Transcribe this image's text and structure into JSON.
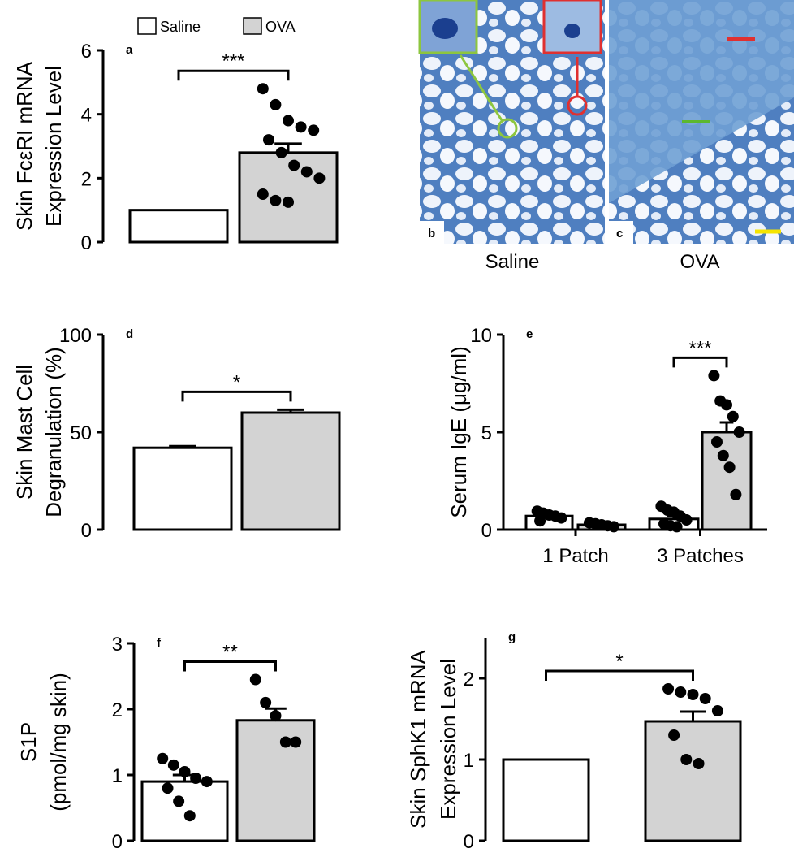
{
  "chart_data": [
    {
      "type": "bar",
      "letter": "a",
      "ylabel": [
        "Skin FcεRI mRNA",
        "Expression Level"
      ],
      "ylim": [
        0,
        6
      ],
      "yticks": [
        0,
        2,
        4,
        6
      ],
      "categories": [
        null
      ],
      "legend": true,
      "significance": "***",
      "series": [
        {
          "name": "Saline",
          "color": "#ffffff",
          "values": [
            1.0
          ],
          "errors": [
            null
          ]
        },
        {
          "name": "OVA",
          "color": "#d3d3d3",
          "values": [
            2.8
          ],
          "errors": [
            0.28
          ],
          "points": [
            [
              4.8,
              4.3,
              3.8,
              3.6,
              3.5,
              3.2,
              2.8,
              2.4,
              2.2,
              2.0,
              1.5,
              1.3,
              1.25
            ]
          ]
        }
      ]
    },
    {
      "type": "bar",
      "letter": "d",
      "ylabel": [
        "Skin Mast Cell",
        "Degranulation (%)"
      ],
      "ylim": [
        0,
        100
      ],
      "yticks": [
        0,
        50,
        100
      ],
      "categories": [
        null
      ],
      "significance": "*",
      "series": [
        {
          "color": "#ffffff",
          "values": [
            42
          ],
          "errors": [
            0.8
          ]
        },
        {
          "color": "#d3d3d3",
          "values": [
            60
          ],
          "errors": [
            1.5
          ]
        }
      ]
    },
    {
      "type": "bar",
      "letter": "e",
      "ylabel": [
        "Serum IgE (μg/ml)"
      ],
      "ylim": [
        0,
        10
      ],
      "yticks": [
        0,
        5,
        10
      ],
      "categories": [
        "1 Patch",
        "3 Patches"
      ],
      "significance": "***",
      "series": [
        {
          "color": "#ffffff",
          "values": [
            0.7,
            0.55
          ],
          "errors": [
            0.1,
            0.15
          ],
          "points": [
            [
              0.95,
              0.85,
              0.75,
              0.7,
              0.6,
              0.45
            ],
            [
              1.2,
              1.0,
              0.9,
              0.7,
              0.5,
              0.3,
              0.2,
              0.15
            ]
          ]
        },
        {
          "color": "#d3d3d3",
          "values": [
            0.25,
            5.0
          ],
          "errors": [
            0.05,
            0.5
          ],
          "points": [
            [
              0.35,
              0.3,
              0.25,
              0.2,
              0.15
            ],
            [
              7.9,
              6.6,
              6.4,
              5.8,
              5.0,
              4.5,
              3.8,
              3.2,
              1.8
            ]
          ]
        }
      ]
    },
    {
      "type": "bar",
      "letter": "f",
      "ylabel": [
        "S1P",
        "(pmol/mg skin)"
      ],
      "ylim": [
        0,
        3
      ],
      "yticks": [
        0,
        1,
        2,
        3
      ],
      "categories": [
        null
      ],
      "significance": "**",
      "series": [
        {
          "color": "#ffffff",
          "values": [
            0.9
          ],
          "errors": [
            0.1
          ],
          "points": [
            [
              1.25,
              1.15,
              1.05,
              0.95,
              0.9,
              0.8,
              0.6,
              0.38
            ]
          ]
        },
        {
          "color": "#d3d3d3",
          "values": [
            1.83
          ],
          "errors": [
            0.18
          ],
          "points": [
            [
              2.45,
              2.1,
              1.9,
              1.5,
              1.5
            ]
          ]
        }
      ]
    },
    {
      "type": "bar",
      "letter": "g",
      "ylabel": [
        "Skin SphK1 mRNA",
        "Expression Level"
      ],
      "ylim": [
        0,
        2.5
      ],
      "yticks": [
        0,
        1,
        2
      ],
      "categories": [
        null
      ],
      "significance": "*",
      "series": [
        {
          "color": "#ffffff",
          "values": [
            1.0
          ],
          "errors": [
            null
          ]
        },
        {
          "color": "#d3d3d3",
          "values": [
            1.47
          ],
          "errors": [
            0.12
          ],
          "points": [
            [
              1.87,
              1.83,
              1.8,
              1.75,
              1.6,
              1.3,
              1.0,
              0.95
            ]
          ]
        }
      ]
    }
  ],
  "images": [
    {
      "letter": "b",
      "caption": "Saline"
    },
    {
      "letter": "c",
      "caption": "OVA"
    }
  ]
}
